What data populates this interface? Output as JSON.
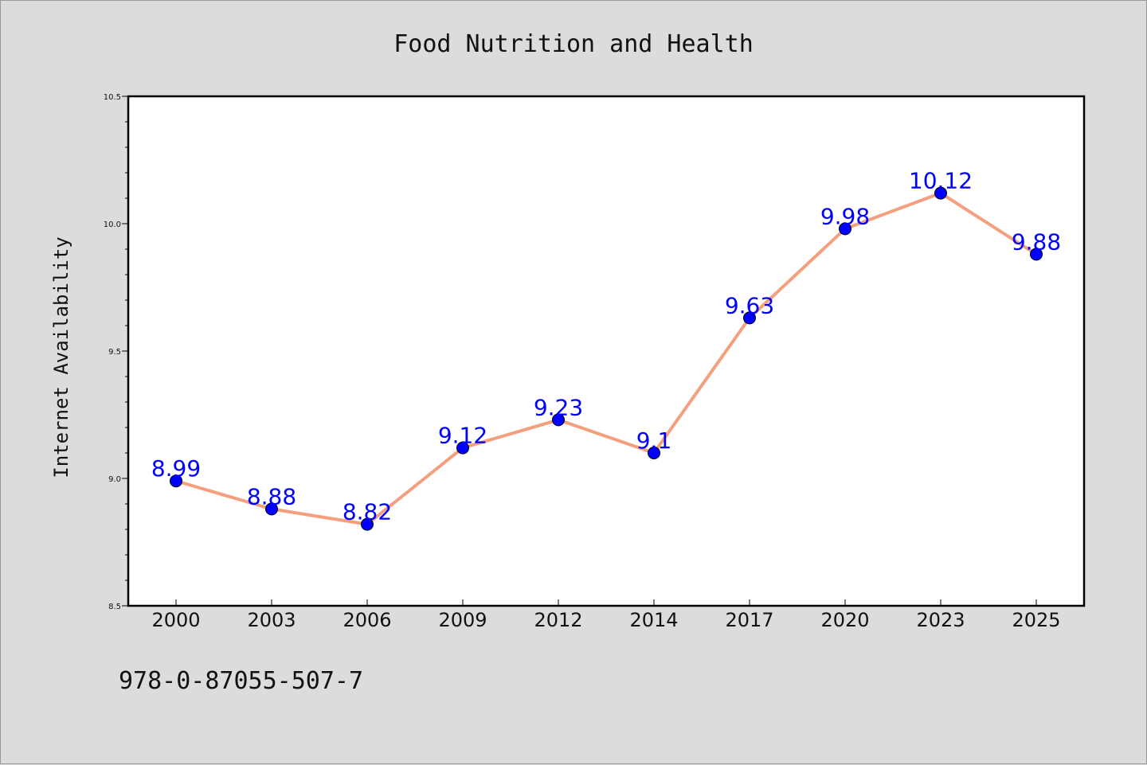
{
  "chart_data": {
    "type": "line",
    "title": "Food Nutrition and Health",
    "xlabel": "",
    "ylabel": "Internet Availability",
    "categories": [
      "2000",
      "2003",
      "2006",
      "2009",
      "2012",
      "2014",
      "2017",
      "2020",
      "2023",
      "2025"
    ],
    "series": [
      {
        "values": [
          8.99,
          8.88,
          8.82,
          9.12,
          9.23,
          9.1,
          9.63,
          9.98,
          10.12,
          9.88
        ],
        "labels": [
          "8.99",
          "8.88",
          "8.82",
          "9.12",
          "9.23",
          "9.1",
          "9.63",
          "9.98",
          "10.12",
          "9.88"
        ]
      }
    ],
    "ylim": [
      8.5,
      10.5
    ],
    "yticks": [
      "8.5",
      "9.0",
      "9.5",
      "10.0",
      "10.5"
    ],
    "grid": false,
    "colors": {
      "line": "#f4a07e",
      "marker": "#0000ff",
      "data_label": "#0000ff",
      "background": "#dcdcdc",
      "plot_background": "#ffffff"
    }
  },
  "footer": {
    "isbn": "978-0-87055-507-7"
  }
}
